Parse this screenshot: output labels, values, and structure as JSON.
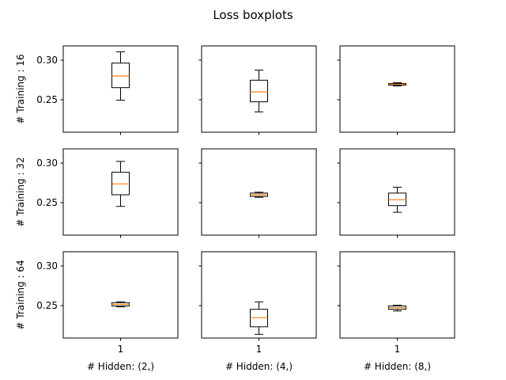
{
  "title": "Loss boxplots",
  "row_labels": [
    "# Training : 16",
    "# Training : 32",
    "# Training : 64"
  ],
  "col_labels": [
    "# Hidden: (2,)",
    "# Hidden: (4,)",
    "# Hidden: (8,)"
  ],
  "colors": {
    "box": "#000000",
    "median": "#ff7f0e",
    "frame": "#000000"
  },
  "chart_data": {
    "type": "boxplot",
    "title": "Loss boxplots",
    "shared_y": true,
    "ylim": [
      0.209,
      0.318
    ],
    "yticks": [
      0.25,
      0.3
    ],
    "ytick_labels": [
      "0.25",
      "0.30"
    ],
    "xtick_labels": [
      "1"
    ],
    "rows": [
      "# Training : 16",
      "# Training : 32",
      "# Training : 64"
    ],
    "cols": [
      "# Hidden: (2,)",
      "# Hidden: (4,)",
      "# Hidden: (8,)"
    ],
    "panels": [
      [
        {
          "whisker_low": 0.2495,
          "q1": 0.2653,
          "median": 0.28,
          "q3": 0.2963,
          "whisker_high": 0.3105
        },
        {
          "whisker_low": 0.2347,
          "q1": 0.2474,
          "median": 0.26,
          "q3": 0.2747,
          "whisker_high": 0.2874
        },
        {
          "whisker_low": 0.2674,
          "q1": 0.2684,
          "median": 0.2695,
          "q3": 0.2705,
          "whisker_high": 0.2716
        }
      ],
      [
        {
          "whisker_low": 0.2453,
          "q1": 0.26,
          "median": 0.2737,
          "q3": 0.2884,
          "whisker_high": 0.3021
        },
        {
          "whisker_low": 0.2568,
          "q1": 0.2579,
          "median": 0.26,
          "q3": 0.2621,
          "whisker_high": 0.2632
        },
        {
          "whisker_low": 0.2379,
          "q1": 0.2463,
          "median": 0.2537,
          "q3": 0.2621,
          "whisker_high": 0.2695
        }
      ],
      [
        {
          "whisker_low": 0.2484,
          "q1": 0.2495,
          "median": 0.2516,
          "q3": 0.2537,
          "whisker_high": 0.2547
        },
        {
          "whisker_low": 0.2137,
          "q1": 0.2232,
          "median": 0.2347,
          "q3": 0.2453,
          "whisker_high": 0.2547
        },
        {
          "whisker_low": 0.2432,
          "q1": 0.2453,
          "median": 0.2474,
          "q3": 0.2495,
          "whisker_high": 0.2505
        }
      ]
    ]
  }
}
